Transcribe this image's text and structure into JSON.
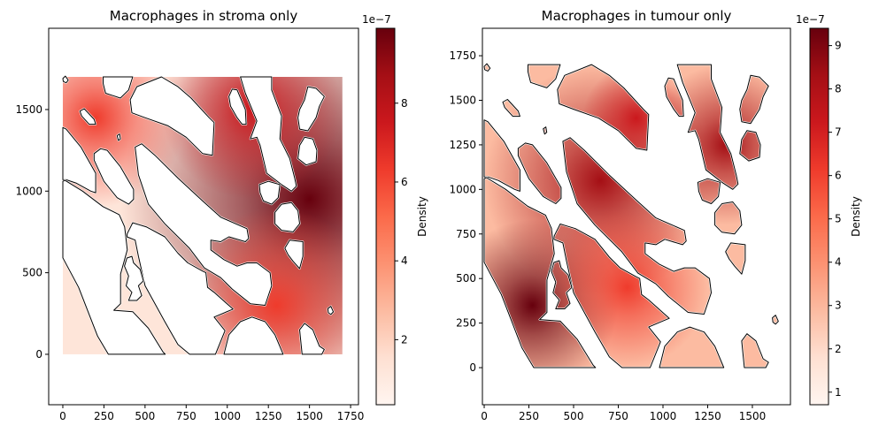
{
  "chart_data": [
    {
      "type": "heatmap",
      "title": "Macrophages in stroma only",
      "xlim": [
        -86,
        1798
      ],
      "ylim": [
        -309,
        1998
      ],
      "xticks": [
        0,
        250,
        500,
        750,
        1000,
        1250,
        1500,
        1750
      ],
      "yticks": [
        0,
        500,
        1000,
        1500
      ],
      "extent": [
        0,
        1700,
        0,
        1700
      ],
      "masked": "tumour regions shown white",
      "colormap": "Reds",
      "colorbar": {
        "label": "Density",
        "offset_text": "1e−7",
        "range": [
          0.35,
          9.9
        ],
        "ticks": [
          2,
          4,
          6,
          8
        ]
      },
      "density_peaks": [
        {
          "x": 1500,
          "y": 950,
          "value": 9.9,
          "radius": 1150,
          "color": "#67000d"
        },
        {
          "x": 1150,
          "y": 1500,
          "value": 7,
          "radius": 550,
          "color": "#cb181d"
        },
        {
          "x": 200,
          "y": 1450,
          "value": 5.5,
          "radius": 550,
          "color": "#ef3b2c"
        },
        {
          "x": 1300,
          "y": 300,
          "value": 5.5,
          "radius": 600,
          "color": "#ef3b2c"
        }
      ],
      "base_color": "#fee5d9"
    },
    {
      "type": "heatmap",
      "title": "Macrophages in tumour only",
      "xlim": [
        -10,
        1713
      ],
      "ylim": [
        -208,
        1904
      ],
      "xticks": [
        0,
        250,
        500,
        750,
        1000,
        1250,
        1500
      ],
      "yticks": [
        0,
        250,
        500,
        750,
        1000,
        1250,
        1500,
        1750
      ],
      "extent": [
        0,
        1700,
        0,
        1700
      ],
      "masked": "stroma regions shown white",
      "colormap": "Reds",
      "colorbar": {
        "label": "Density",
        "offset_text": "1e−7",
        "range": [
          0.71,
          9.4
        ],
        "ticks": [
          1,
          2,
          3,
          4,
          5,
          6,
          7,
          8,
          9
        ]
      },
      "density_peaks": [
        {
          "x": 270,
          "y": 350,
          "value": 9.4,
          "radius": 480,
          "color": "#67000d"
        },
        {
          "x": 650,
          "y": 1050,
          "value": 7.5,
          "radius": 650,
          "color": "#a50f15"
        },
        {
          "x": 1350,
          "y": 1250,
          "value": 8,
          "radius": 450,
          "color": "#a50f15"
        },
        {
          "x": 850,
          "y": 1400,
          "value": 7,
          "radius": 300,
          "color": "#cb181d"
        },
        {
          "x": 800,
          "y": 450,
          "value": 6,
          "radius": 450,
          "color": "#ef3b2c"
        }
      ],
      "base_color": "#fcbba1"
    }
  ],
  "regions": [
    [
      [
        245,
        1700
      ],
      [
        425,
        1700
      ],
      [
        400,
        1620
      ],
      [
        350,
        1570
      ],
      [
        260,
        1600
      ],
      [
        245,
        1660
      ]
    ],
    [
      [
        410,
        1560
      ],
      [
        450,
        1640
      ],
      [
        600,
        1700
      ],
      [
        700,
        1640
      ],
      [
        780,
        1570
      ],
      [
        890,
        1450
      ],
      [
        920,
        1420
      ],
      [
        910,
        1220
      ],
      [
        850,
        1230
      ],
      [
        750,
        1330
      ],
      [
        640,
        1400
      ],
      [
        500,
        1450
      ],
      [
        420,
        1480
      ]
    ],
    [
      [
        104,
        1490
      ],
      [
        130,
        1505
      ],
      [
        190,
        1440
      ],
      [
        200,
        1410
      ],
      [
        160,
        1410
      ],
      [
        115,
        1460
      ]
    ],
    [
      [
        330,
        1340
      ],
      [
        345,
        1350
      ],
      [
        350,
        1320
      ],
      [
        338,
        1310
      ]
    ],
    [
      [
        0,
        1390
      ],
      [
        20,
        1380
      ],
      [
        110,
        1270
      ],
      [
        200,
        1110
      ],
      [
        200,
        990
      ],
      [
        170,
        1000
      ],
      [
        80,
        1050
      ],
      [
        20,
        1070
      ],
      [
        0,
        1070
      ]
    ],
    [
      [
        0,
        1060
      ],
      [
        13,
        1066
      ],
      [
        120,
        1000
      ],
      [
        244,
        905
      ],
      [
        343,
        856
      ],
      [
        376,
        781
      ],
      [
        392,
        640
      ],
      [
        351,
        492
      ],
      [
        351,
        310
      ],
      [
        310,
        270
      ],
      [
        425,
        261
      ],
      [
        520,
        160
      ],
      [
        610,
        13
      ],
      [
        623,
        0
      ],
      [
        277,
        0
      ],
      [
        211,
        112
      ],
      [
        96,
        410
      ],
      [
        0,
        591
      ]
    ],
    [
      [
        190,
        1230
      ],
      [
        230,
        1260
      ],
      [
        270,
        1250
      ],
      [
        350,
        1150
      ],
      [
        430,
        1010
      ],
      [
        430,
        950
      ],
      [
        400,
        920
      ],
      [
        330,
        960
      ],
      [
        250,
        1060
      ],
      [
        190,
        1190
      ]
    ],
    [
      [
        440,
        1270
      ],
      [
        480,
        1290
      ],
      [
        560,
        1220
      ],
      [
        700,
        1080
      ],
      [
        850,
        940
      ],
      [
        960,
        840
      ],
      [
        1120,
        770
      ],
      [
        1130,
        710
      ],
      [
        1110,
        690
      ],
      [
        1010,
        720
      ],
      [
        960,
        690
      ],
      [
        900,
        700
      ],
      [
        900,
        640
      ],
      [
        980,
        580
      ],
      [
        1060,
        540
      ],
      [
        1120,
        560
      ],
      [
        1180,
        560
      ],
      [
        1260,
        500
      ],
      [
        1270,
        420
      ],
      [
        1230,
        300
      ],
      [
        1140,
        310
      ],
      [
        1030,
        400
      ],
      [
        960,
        470
      ],
      [
        860,
        530
      ],
      [
        770,
        650
      ],
      [
        620,
        800
      ],
      [
        520,
        920
      ],
      [
        460,
        1100
      ]
    ],
    [
      [
        392,
        740
      ],
      [
        425,
        806
      ],
      [
        510,
        780
      ],
      [
        620,
        720
      ],
      [
        700,
        620
      ],
      [
        760,
        560
      ],
      [
        850,
        510
      ],
      [
        870,
        500
      ],
      [
        880,
        410
      ],
      [
        920,
        380
      ],
      [
        1035,
        277
      ],
      [
        920,
        228
      ],
      [
        986,
        145
      ],
      [
        928,
        0
      ],
      [
        771,
        0
      ],
      [
        700,
        60
      ],
      [
        620,
        200
      ],
      [
        500,
        420
      ],
      [
        460,
        600
      ],
      [
        440,
        700
      ],
      [
        390,
        720
      ]
    ],
    [
      [
        980,
        0
      ],
      [
        1010,
        120
      ],
      [
        1080,
        200
      ],
      [
        1150,
        228
      ],
      [
        1230,
        200
      ],
      [
        1290,
        120
      ],
      [
        1340,
        0
      ]
    ],
    [
      [
        1455,
        0
      ],
      [
        1440,
        150
      ],
      [
        1470,
        190
      ],
      [
        1520,
        150
      ],
      [
        1560,
        50
      ],
      [
        1590,
        30
      ],
      [
        1575,
        0
      ]
    ],
    [
      [
        1080,
        1700
      ],
      [
        1270,
        1700
      ],
      [
        1270,
        1620
      ],
      [
        1330,
        1460
      ],
      [
        1320,
        1320
      ],
      [
        1380,
        1200
      ],
      [
        1410,
        1080
      ],
      [
        1420,
        1030
      ],
      [
        1390,
        1000
      ],
      [
        1330,
        1040
      ],
      [
        1240,
        1110
      ],
      [
        1200,
        1280
      ],
      [
        1180,
        1330
      ],
      [
        1140,
        1320
      ],
      [
        1180,
        1430
      ],
      [
        1110,
        1600
      ]
    ],
    [
      [
        1010,
        1580
      ],
      [
        1030,
        1625
      ],
      [
        1060,
        1620
      ],
      [
        1110,
        1500
      ],
      [
        1115,
        1410
      ],
      [
        1090,
        1410
      ],
      [
        1060,
        1450
      ],
      [
        1020,
        1520
      ]
    ],
    [
      [
        1440,
        1500
      ],
      [
        1470,
        1560
      ],
      [
        1490,
        1640
      ],
      [
        1540,
        1630
      ],
      [
        1590,
        1580
      ],
      [
        1560,
        1520
      ],
      [
        1540,
        1450
      ],
      [
        1490,
        1370
      ],
      [
        1440,
        1380
      ],
      [
        1430,
        1450
      ]
    ],
    [
      [
        1440,
        1280
      ],
      [
        1470,
        1330
      ],
      [
        1520,
        1320
      ],
      [
        1545,
        1250
      ],
      [
        1540,
        1180
      ],
      [
        1480,
        1160
      ],
      [
        1430,
        1200
      ]
    ],
    [
      [
        1195,
        1040
      ],
      [
        1250,
        1060
      ],
      [
        1320,
        1040
      ],
      [
        1310,
        960
      ],
      [
        1270,
        920
      ],
      [
        1220,
        940
      ],
      [
        1200,
        990
      ]
    ],
    [
      [
        1290,
        870
      ],
      [
        1330,
        920
      ],
      [
        1390,
        930
      ],
      [
        1430,
        880
      ],
      [
        1440,
        800
      ],
      [
        1400,
        750
      ],
      [
        1330,
        760
      ],
      [
        1290,
        800
      ]
    ],
    [
      [
        1350,
        650
      ],
      [
        1380,
        700
      ],
      [
        1460,
        690
      ],
      [
        1460,
        600
      ],
      [
        1440,
        525
      ],
      [
        1400,
        570
      ],
      [
        1370,
        610
      ]
    ],
    [
      [
        1612,
        280
      ],
      [
        1630,
        294
      ],
      [
        1645,
        260
      ],
      [
        1630,
        244
      ],
      [
        1615,
        255
      ]
    ],
    [
      [
        0,
        1690
      ],
      [
        15,
        1705
      ],
      [
        33,
        1680
      ],
      [
        20,
        1664
      ],
      [
        3,
        1672
      ]
    ],
    [
      [
        390,
        590
      ],
      [
        420,
        600
      ],
      [
        430,
        560
      ],
      [
        470,
        520
      ],
      [
        490,
        450
      ],
      [
        460,
        420
      ],
      [
        480,
        360
      ],
      [
        450,
        330
      ],
      [
        400,
        330
      ],
      [
        420,
        380
      ],
      [
        385,
        420
      ],
      [
        400,
        480
      ],
      [
        375,
        540
      ]
    ]
  ]
}
